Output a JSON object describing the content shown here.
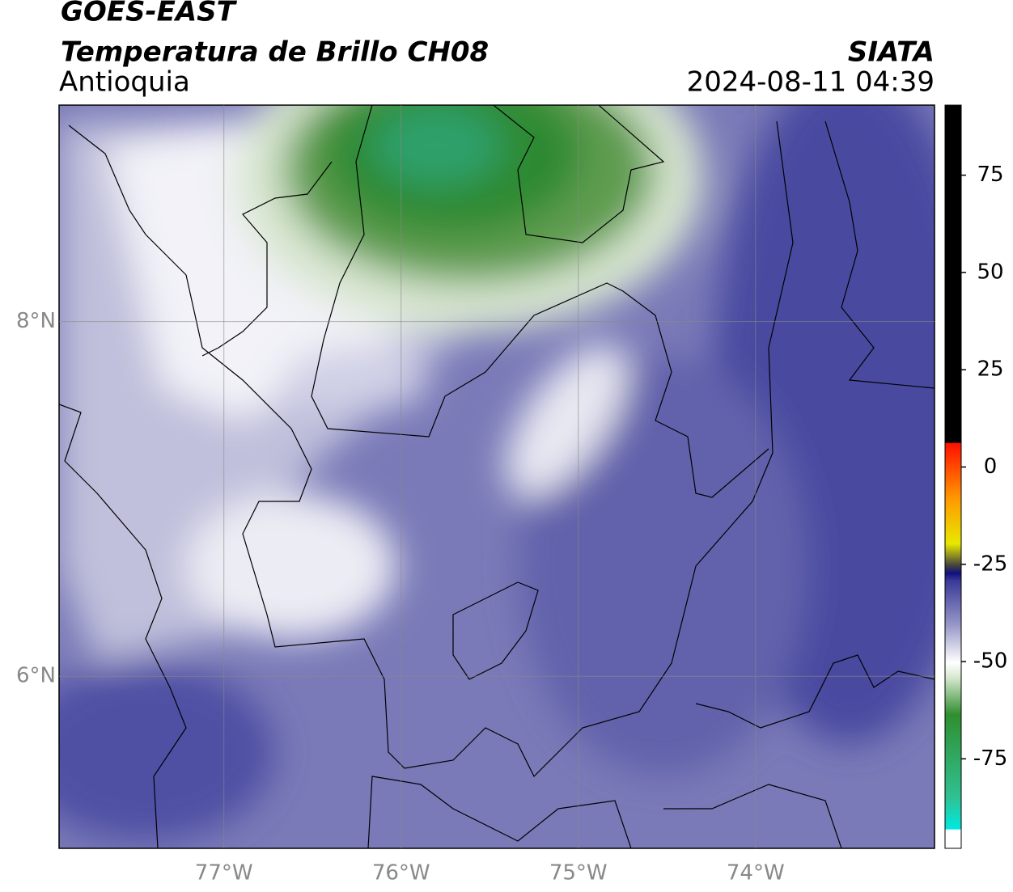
{
  "header": {
    "title": "GOES-EAST",
    "subtitle": "Temperatura de Brillo CH08",
    "region": "Antioquia",
    "source": "SIATA",
    "datetime": "2024-08-11 04:39"
  },
  "map": {
    "xlim": [
      -77.93,
      -72.99
    ],
    "ylim": [
      5.03,
      9.22
    ],
    "xticks": [
      {
        "value": -77,
        "label": "77°W"
      },
      {
        "value": -76,
        "label": "76°W"
      },
      {
        "value": -75,
        "label": "75°W"
      },
      {
        "value": -74,
        "label": "74°W"
      }
    ],
    "yticks": [
      {
        "value": 6,
        "label": "6°N"
      },
      {
        "value": 8,
        "label": "8°N"
      }
    ],
    "grid": true
  },
  "colorbar": {
    "lim": [
      -98,
      93
    ],
    "ticks": [
      -75,
      -50,
      -25,
      0,
      25,
      50,
      75
    ]
  }
}
